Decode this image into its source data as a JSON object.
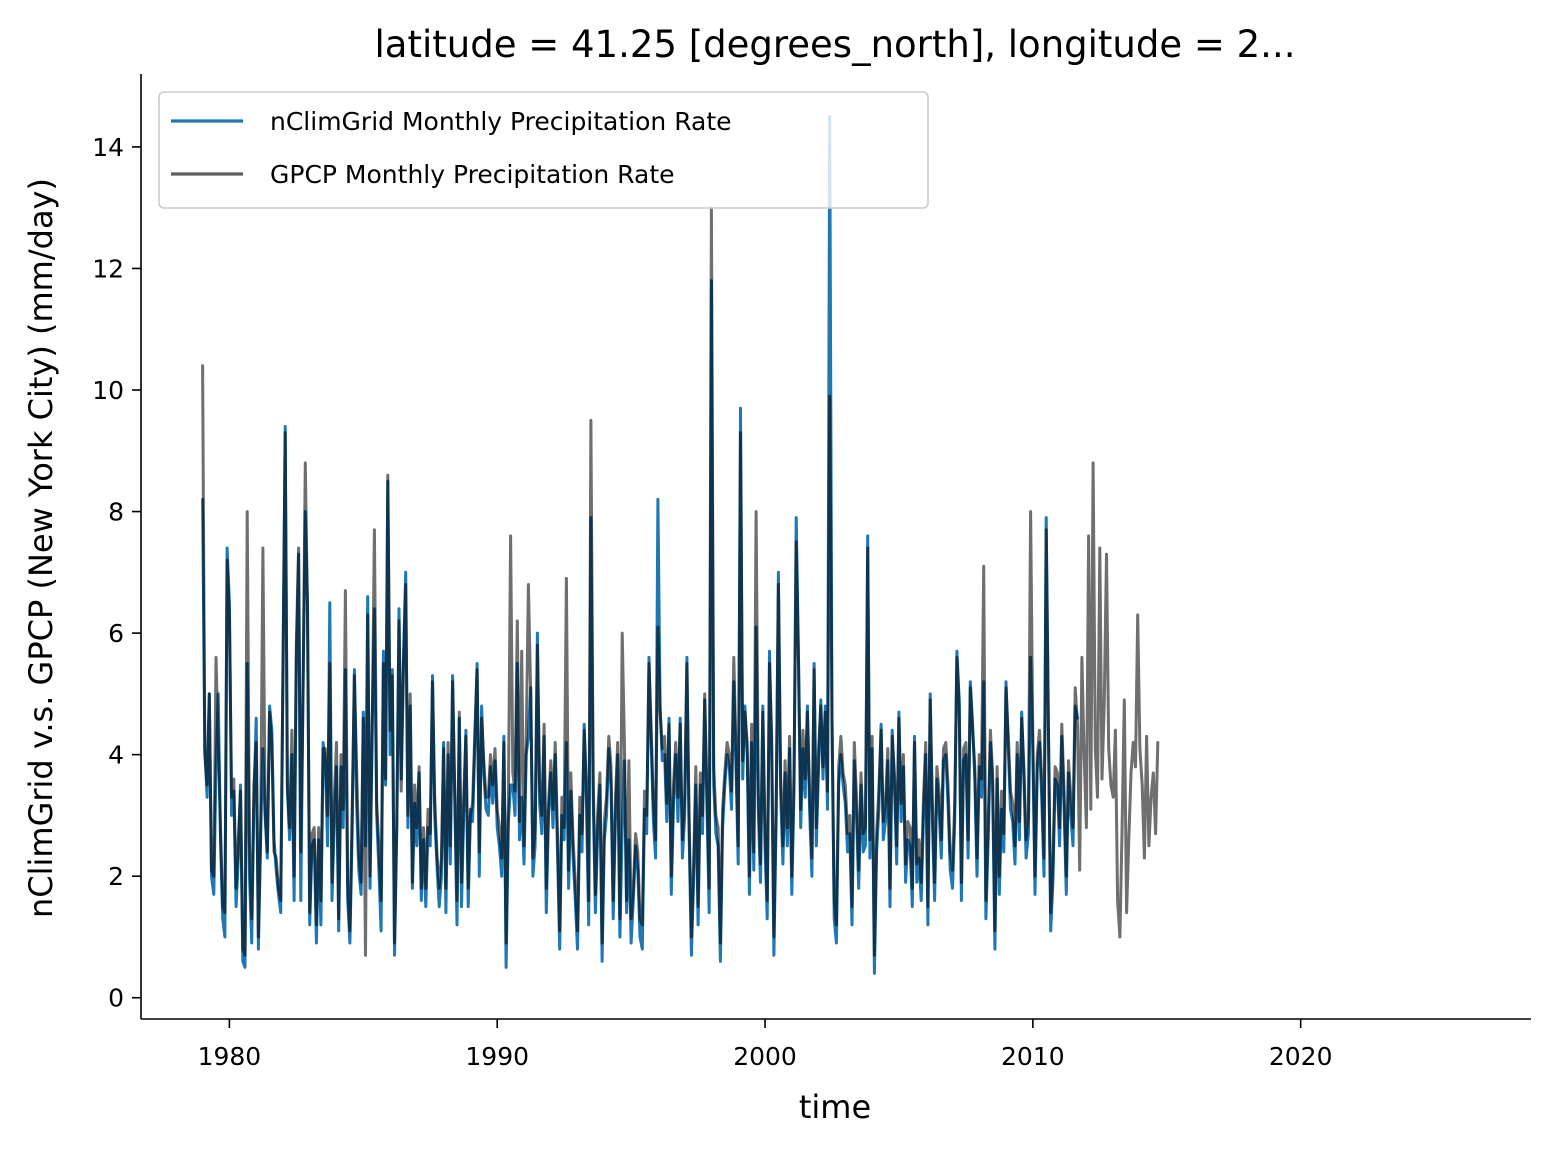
{
  "chart_data": {
    "type": "line",
    "title": "latitude = 41.25 [degrees_north], longitude = 2...",
    "xlabel": "time",
    "ylabel": "nClimGrid v.s. GPCP (New York City) (mm/day)",
    "xlim": [
      1976.7,
      2028.6
    ],
    "ylim": [
      -0.35,
      15.2
    ],
    "xticks": [
      1980,
      1990,
      2000,
      2010,
      2020
    ],
    "xtick_labels": [
      "1980",
      "1990",
      "2000",
      "2010",
      "2020"
    ],
    "yticks": [
      0,
      2,
      4,
      6,
      8,
      10,
      12,
      14
    ],
    "ytick_labels": [
      "0",
      "2",
      "4",
      "6",
      "8",
      "10",
      "12",
      "14"
    ],
    "grid": false,
    "legend_position": "top-left",
    "series": [
      {
        "name": "nClimGrid Monthly Precipitation Rate",
        "color": "#1f77b4",
        "x_start": 1979.0,
        "step": 0.08333,
        "values": [
          8.2,
          4.1,
          3.3,
          5.0,
          2.0,
          1.7,
          3.8,
          5.0,
          2.6,
          1.3,
          1.0,
          7.4,
          6.5,
          3.0,
          3.4,
          1.5,
          2.3,
          3.5,
          0.6,
          0.5,
          5.5,
          2.0,
          0.9,
          3.2,
          4.6,
          0.8,
          2.7,
          4.1,
          3.0,
          2.3,
          4.8,
          4.4,
          2.6,
          2.1,
          1.7,
          1.4,
          5.3,
          9.4,
          3.4,
          2.6,
          4.0,
          1.6,
          5.5,
          7.3,
          1.6,
          5.0,
          8.0,
          6.5,
          1.2,
          2.5,
          2.6,
          0.9,
          2.6,
          1.2,
          4.2,
          3.9,
          2.5,
          6.5,
          1.6,
          2.9,
          3.8,
          1.1,
          3.8,
          2.8,
          5.4,
          1.6,
          0.9,
          2.7,
          5.4,
          3.2,
          2.1,
          1.7,
          4.7,
          2.5,
          6.6,
          1.8,
          4.5,
          6.4,
          3.0,
          2.1,
          1.1,
          5.7,
          3.5,
          8.5,
          4.0,
          5.4,
          0.7,
          2.8,
          6.4,
          3.6,
          5.6,
          7.0,
          2.8,
          4.8,
          1.8,
          3.2,
          2.5,
          3.7,
          1.6,
          2.6,
          1.5,
          2.8,
          2.5,
          5.3,
          3.0,
          2.2,
          1.5,
          2.0,
          4.2,
          1.4,
          4.0,
          2.2,
          5.3,
          3.2,
          1.2,
          4.6,
          1.5,
          3.0,
          4.4,
          1.5,
          3.1,
          2.9,
          4.2,
          5.5,
          2.0,
          4.8,
          3.7,
          3.1,
          3.0,
          3.8,
          3.2,
          3.9,
          2.8,
          2.5,
          2.0,
          4.3,
          0.5,
          2.9,
          3.5,
          3.5,
          3.0,
          5.5,
          2.6,
          3.3,
          2.2,
          4.0,
          4.3,
          5.1,
          2.0,
          2.5,
          6.0,
          3.2,
          2.7,
          4.3,
          1.4,
          3.0,
          3.7,
          2.8,
          4.0,
          2.4,
          0.8,
          3.0,
          2.6,
          4.2,
          1.8,
          3.4,
          2.3,
          1.6,
          0.8,
          3.0,
          2.4,
          4.5,
          3.2,
          1.2,
          7.9,
          3.3,
          1.4,
          2.7,
          3.5,
          0.6,
          2.6,
          3.0,
          4.1,
          3.5,
          1.3,
          3.0,
          4.0,
          1.0,
          2.8,
          3.9,
          1.4,
          2.6,
          0.9,
          1.6,
          2.5,
          2.1,
          1.0,
          0.8,
          3.1,
          2.7,
          5.6,
          4.2,
          2.9,
          2.3,
          8.2,
          4.8,
          3.9,
          4.0,
          2.9,
          4.6,
          1.7,
          3.2,
          4.0,
          2.9,
          4.6,
          2.3,
          3.0,
          5.6,
          2.7,
          0.7,
          1.9,
          3.5,
          1.2,
          3.5,
          2.7,
          4.9,
          3.1,
          1.4,
          11.8,
          3.5,
          2.7,
          2.5,
          0.6,
          2.8,
          3.5,
          4.0,
          3.8,
          3.1,
          5.2,
          3.8,
          2.2,
          9.7,
          3.6,
          4.8,
          4.0,
          1.7,
          4.2,
          2.1,
          6.1,
          3.1,
          1.9,
          4.8,
          2.5,
          1.3,
          5.7,
          4.0,
          0.7,
          3.0,
          7.0,
          3.4,
          2.2,
          3.7,
          2.5,
          4.1,
          1.7,
          3.4,
          7.9,
          5.6,
          2.8,
          4.1,
          3.3,
          4.8,
          3.1,
          2.0,
          5.5,
          2.5,
          3.8,
          4.9,
          3.6,
          4.8,
          3.1,
          14.5,
          4.6,
          1.3,
          0.9,
          3.5,
          4.0,
          3.5,
          3.2,
          2.4,
          2.7,
          1.2,
          3.9,
          3.0,
          1.8,
          3.5,
          2.4,
          2.5,
          7.6,
          2.3,
          4.1,
          0.4,
          2.4,
          3.1,
          4.5,
          2.6,
          2.9,
          3.9,
          1.5,
          4.4,
          3.5,
          2.2,
          4.7,
          2.9,
          3.8,
          1.9,
          2.6,
          2.5,
          1.5,
          4.3,
          1.9,
          2.3,
          1.6,
          3.0,
          4.0,
          1.2,
          5.0,
          2.9,
          1.6,
          3.6,
          3.1,
          2.3,
          3.9,
          4.0,
          3.2,
          2.1,
          1.8,
          2.9,
          5.7,
          4.9,
          1.6,
          3.9,
          4.0,
          2.3,
          5.2,
          4.5,
          3.6,
          2.0,
          3.8,
          3.3,
          5.2,
          1.3,
          2.6,
          4.2,
          3.5,
          0.8,
          3.6,
          1.7,
          3.1,
          2.4,
          5.2,
          4.1,
          3.1,
          2.9,
          2.2,
          4.0,
          2.6,
          4.7,
          3.6,
          2.3,
          2.7,
          5.6,
          4.1,
          1.7,
          3.8,
          4.2,
          3.3,
          2.0,
          7.9,
          4.5,
          1.1,
          1.9,
          3.6,
          3.5,
          2.5,
          4.3,
          3.1,
          1.7,
          3.7,
          3.0,
          2.5,
          4.8,
          4.6
        ]
      },
      {
        "name": "GPCP Monthly Precipitation Rate",
        "color": "#5f5f5f",
        "x_start": 1979.0,
        "step": 0.08333,
        "values": [
          10.4,
          4.0,
          3.5,
          5.0,
          2.1,
          2.0,
          5.6,
          4.2,
          2.8,
          1.5,
          1.4,
          7.2,
          6.3,
          3.3,
          3.6,
          1.8,
          2.6,
          3.4,
          0.8,
          0.7,
          8.0,
          2.5,
          1.3,
          3.5,
          4.2,
          1.0,
          2.6,
          7.4,
          3.1,
          2.4,
          4.7,
          4.2,
          2.4,
          2.3,
          1.8,
          1.6,
          5.2,
          9.3,
          3.5,
          2.8,
          4.4,
          2.0,
          5.8,
          7.4,
          2.4,
          5.0,
          8.8,
          6.3,
          1.4,
          2.7,
          2.8,
          1.2,
          2.8,
          1.6,
          4.1,
          4.1,
          3.0,
          5.5,
          1.9,
          3.3,
          4.2,
          1.3,
          4.0,
          3.1,
          6.7,
          1.9,
          1.1,
          3.0,
          5.3,
          3.8,
          2.4,
          1.9,
          4.6,
          0.7,
          6.3,
          2.0,
          4.4,
          7.7,
          3.2,
          2.5,
          1.6,
          5.5,
          3.6,
          8.6,
          4.4,
          5.3,
          0.9,
          2.9,
          6.2,
          3.4,
          5.5,
          6.8,
          3.0,
          5.0,
          1.9,
          3.5,
          2.8,
          3.8,
          1.8,
          2.8,
          1.8,
          3.1,
          2.7,
          5.2,
          3.3,
          2.4,
          1.8,
          2.3,
          4.1,
          1.8,
          4.2,
          2.5,
          5.2,
          3.4,
          1.6,
          4.7,
          1.9,
          3.3,
          4.3,
          1.8,
          3.0,
          3.2,
          4.4,
          5.4,
          2.4,
          4.6,
          3.9,
          3.3,
          3.3,
          4.0,
          3.5,
          4.1,
          3.1,
          2.8,
          2.3,
          4.2,
          0.9,
          3.3,
          7.6,
          3.7,
          3.4,
          6.2,
          2.9,
          5.7,
          2.5,
          4.2,
          6.8,
          5.0,
          2.3,
          2.8,
          5.8,
          3.5,
          3.0,
          4.5,
          1.8,
          3.2,
          3.9,
          3.1,
          4.2,
          2.7,
          1.1,
          3.3,
          2.8,
          6.9,
          2.1,
          3.7,
          2.6,
          1.9,
          1.1,
          3.3,
          2.7,
          4.4,
          3.5,
          1.6,
          9.5,
          3.6,
          1.7,
          3.0,
          3.7,
          0.9,
          2.9,
          3.3,
          4.3,
          3.8,
          1.6,
          3.3,
          4.2,
          1.3,
          6.0,
          4.2,
          1.6,
          3.9,
          1.3,
          1.8,
          2.7,
          2.4,
          1.3,
          1.2,
          3.4,
          3.0,
          5.5,
          4.4,
          3.2,
          2.6,
          6.1,
          4.7,
          4.1,
          4.3,
          3.2,
          4.5,
          2.0,
          3.5,
          4.2,
          3.3,
          4.5,
          2.6,
          3.3,
          5.5,
          3.0,
          1.0,
          2.2,
          3.8,
          1.5,
          3.7,
          3.0,
          5.0,
          3.4,
          1.8,
          13.0,
          3.8,
          3.0,
          2.8,
          0.9,
          3.1,
          3.7,
          4.2,
          4.0,
          3.4,
          5.6,
          4.1,
          2.5,
          9.3,
          3.9,
          4.7,
          4.2,
          2.0,
          4.5,
          2.4,
          8.0,
          3.4,
          2.2,
          4.7,
          2.8,
          1.6,
          5.5,
          4.3,
          1.0,
          3.3,
          6.8,
          3.7,
          2.5,
          3.9,
          2.8,
          4.3,
          2.0,
          3.7,
          7.5,
          5.5,
          3.1,
          4.4,
          3.6,
          4.7,
          3.4,
          2.3,
          5.4,
          2.8,
          4.1,
          4.8,
          3.8,
          4.7,
          3.4,
          9.9,
          4.5,
          1.6,
          1.2,
          3.8,
          4.3,
          3.7,
          3.5,
          2.7,
          3.0,
          1.5,
          4.2,
          3.3,
          2.1,
          3.7,
          2.7,
          2.8,
          7.4,
          2.6,
          4.3,
          0.7,
          2.7,
          3.4,
          4.4,
          2.9,
          3.2,
          4.1,
          1.8,
          4.3,
          3.7,
          2.5,
          4.6,
          3.2,
          4.0,
          2.2,
          2.9,
          2.8,
          1.8,
          4.2,
          2.2,
          2.6,
          1.9,
          3.3,
          4.2,
          1.5,
          4.9,
          3.2,
          1.9,
          3.8,
          3.4,
          2.6,
          4.1,
          4.2,
          3.5,
          2.4,
          2.1,
          3.2,
          5.6,
          4.8,
          1.9,
          4.1,
          4.2,
          2.6,
          5.1,
          4.4,
          3.8,
          2.3,
          4.0,
          3.6,
          7.1,
          1.6,
          2.9,
          4.4,
          3.7,
          1.1,
          3.8,
          2.0,
          3.4,
          2.7,
          5.1,
          4.3,
          3.4,
          3.2,
          2.5,
          4.2,
          2.9,
          4.6,
          3.8,
          2.6,
          3.0,
          8.0,
          4.3,
          2.0,
          4.0,
          4.4,
          3.6,
          2.3,
          7.7,
          4.4,
          1.4,
          2.2,
          3.8,
          3.7,
          2.8,
          4.5,
          3.4,
          2.0,
          3.9,
          3.3,
          2.8,
          5.1,
          4.5,
          2.1,
          5.6,
          4.0,
          2.8,
          7.6,
          3.1,
          8.8,
          4.1,
          3.3,
          7.4,
          3.6,
          4.8,
          7.3,
          4.1,
          3.5,
          3.3,
          4.4,
          1.6,
          1.0,
          2.8,
          4.9,
          1.4,
          2.6,
          3.7,
          4.2,
          3.8,
          6.3,
          4.1,
          3.5,
          2.3,
          4.3,
          2.5,
          3.3,
          3.7,
          2.7,
          4.2
        ]
      }
    ]
  }
}
